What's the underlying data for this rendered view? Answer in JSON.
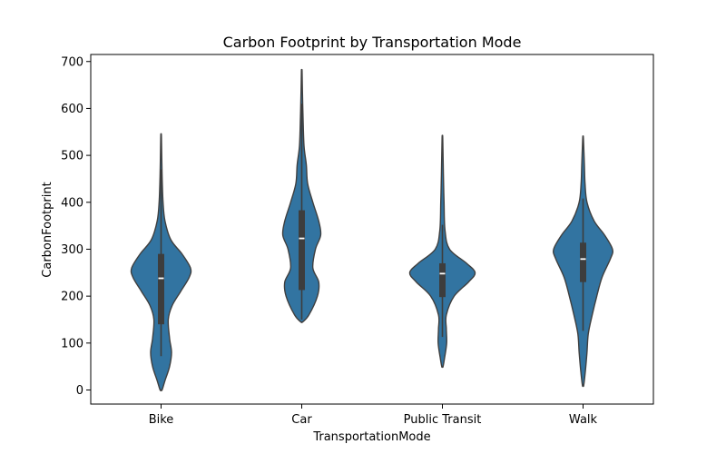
{
  "chart_data": {
    "type": "violin",
    "title": "Carbon Footprint by Transportation Mode",
    "xlabel": "TransportationMode",
    "ylabel": "CarbonFootprint",
    "ylim": [
      -30,
      715
    ],
    "yticks": [
      0,
      100,
      200,
      300,
      400,
      500,
      600,
      700
    ],
    "categories": [
      "Bike",
      "Car",
      "Public Transit",
      "Walk"
    ],
    "color": "#3274a1",
    "edge_color": "#3f3f3f",
    "box_color": "#3d3d3d",
    "violins": [
      {
        "category": "Bike",
        "min": 0,
        "max": 540,
        "q1": 140,
        "median": 238,
        "q3": 290,
        "whisker_low": 72,
        "whisker_high": 470,
        "profile": [
          [
            0,
            0.03
          ],
          [
            20,
            0.12
          ],
          [
            50,
            0.26
          ],
          [
            80,
            0.32
          ],
          [
            110,
            0.26
          ],
          [
            150,
            0.22
          ],
          [
            180,
            0.34
          ],
          [
            210,
            0.6
          ],
          [
            240,
            0.86
          ],
          [
            260,
            0.9
          ],
          [
            290,
            0.64
          ],
          [
            320,
            0.3
          ],
          [
            360,
            0.12
          ],
          [
            400,
            0.06
          ],
          [
            460,
            0.03
          ],
          [
            540,
            0.01
          ]
        ]
      },
      {
        "category": "Car",
        "min": 145,
        "max": 680,
        "q1": 213,
        "median": 323,
        "q3": 383,
        "whisker_low": 150,
        "whisker_high": 610,
        "profile": [
          [
            145,
            0.03
          ],
          [
            160,
            0.22
          ],
          [
            200,
            0.48
          ],
          [
            230,
            0.52
          ],
          [
            260,
            0.34
          ],
          [
            300,
            0.42
          ],
          [
            330,
            0.58
          ],
          [
            360,
            0.52
          ],
          [
            400,
            0.34
          ],
          [
            440,
            0.18
          ],
          [
            480,
            0.14
          ],
          [
            520,
            0.07
          ],
          [
            580,
            0.04
          ],
          [
            640,
            0.02
          ],
          [
            680,
            0.01
          ]
        ]
      },
      {
        "category": "Public Transit",
        "min": 50,
        "max": 537,
        "q1": 198,
        "median": 248,
        "q3": 270,
        "whisker_low": 113,
        "whisker_high": 352,
        "profile": [
          [
            50,
            0.02
          ],
          [
            70,
            0.07
          ],
          [
            100,
            0.13
          ],
          [
            130,
            0.12
          ],
          [
            160,
            0.12
          ],
          [
            200,
            0.36
          ],
          [
            230,
            0.8
          ],
          [
            250,
            1.0
          ],
          [
            270,
            0.74
          ],
          [
            300,
            0.22
          ],
          [
            340,
            0.08
          ],
          [
            400,
            0.05
          ],
          [
            460,
            0.03
          ],
          [
            537,
            0.01
          ]
        ]
      },
      {
        "category": "Walk",
        "min": 10,
        "max": 537,
        "q1": 230,
        "median": 279,
        "q3": 314,
        "whisker_low": 126,
        "whisker_high": 408,
        "profile": [
          [
            10,
            0.02
          ],
          [
            40,
            0.07
          ],
          [
            80,
            0.12
          ],
          [
            120,
            0.16
          ],
          [
            160,
            0.28
          ],
          [
            200,
            0.42
          ],
          [
            240,
            0.58
          ],
          [
            280,
            0.84
          ],
          [
            300,
            0.9
          ],
          [
            330,
            0.66
          ],
          [
            360,
            0.34
          ],
          [
            400,
            0.12
          ],
          [
            440,
            0.06
          ],
          [
            480,
            0.04
          ],
          [
            537,
            0.01
          ]
        ]
      }
    ]
  }
}
